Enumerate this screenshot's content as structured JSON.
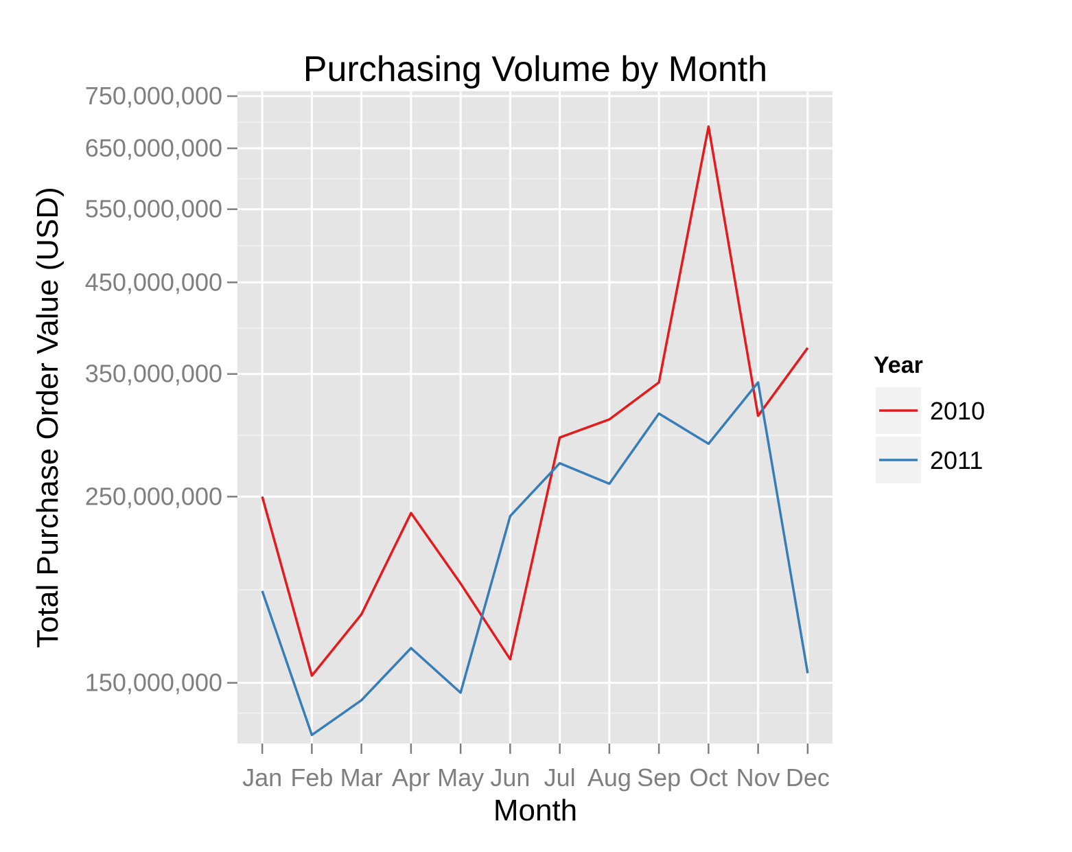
{
  "chart_data": {
    "type": "line",
    "title": "Purchasing Volume by Month",
    "xlabel": "Month",
    "ylabel": "Total Purchase Order Value (USD)",
    "y_scale": "log10",
    "ylim": [
      127000000,
      760000000
    ],
    "categories": [
      "Jan",
      "Feb",
      "Mar",
      "Apr",
      "May",
      "Jun",
      "Jul",
      "Aug",
      "Sep",
      "Oct",
      "Nov",
      "Dec"
    ],
    "y_ticks": [
      150000000,
      250000000,
      350000000,
      450000000,
      550000000,
      650000000,
      750000000
    ],
    "y_tick_labels": [
      "150,000,000",
      "250,000,000",
      "350,000,000",
      "450,000,000",
      "550,000,000",
      "650,000,000",
      "750,000,000"
    ],
    "grid": true,
    "legend": {
      "title": "Year",
      "position": "right"
    },
    "series": [
      {
        "name": "2010",
        "color": "#e41a1c",
        "values": [
          250000000,
          153000000,
          181000000,
          239000000,
          197000000,
          160000000,
          294000000,
          309000000,
          342000000,
          690000000,
          312000000,
          376000000
        ]
      },
      {
        "name": "2011",
        "color": "#377eb8",
        "values": [
          193000000,
          130000000,
          143000000,
          165000000,
          146000000,
          237000000,
          274000000,
          259000000,
          314000000,
          289000000,
          342000000,
          154000000
        ]
      }
    ]
  }
}
